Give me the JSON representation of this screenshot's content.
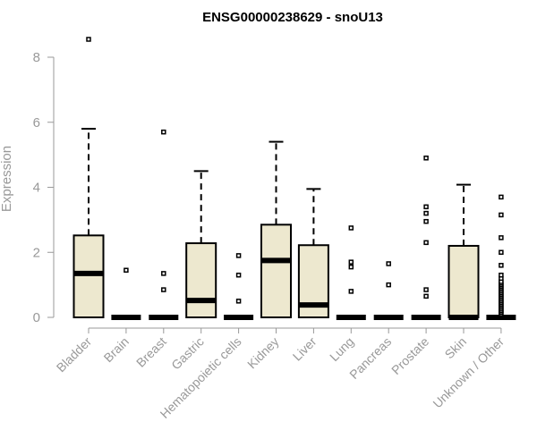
{
  "chart_data": {
    "type": "boxplot",
    "title": "ENSG00000238629 - snoU13",
    "xlabel": "",
    "ylabel": "Expression",
    "ylim": [
      0,
      8.8
    ],
    "yticks": [
      0,
      2,
      4,
      6,
      8
    ],
    "grid": false,
    "legend": "none",
    "box_color": "#EDE8CF",
    "categories": [
      "Bladder",
      "Brain",
      "Breast",
      "Gastric",
      "Hematopoietic cells",
      "Kidney",
      "Liver",
      "Lung",
      "Pancreas",
      "Prostate",
      "Skin",
      "Unknown / Other"
    ],
    "boxes": [
      {
        "category": "Bladder",
        "q1": 0.0,
        "median": 1.35,
        "q3": 2.52,
        "whisker_low": 0.0,
        "whisker_high": 5.8,
        "outliers": [
          8.55
        ]
      },
      {
        "category": "Brain",
        "q1": 0.0,
        "median": 0.0,
        "q3": 0.0,
        "whisker_low": 0.0,
        "whisker_high": 0.0,
        "outliers": [
          1.45
        ]
      },
      {
        "category": "Breast",
        "q1": 0.0,
        "median": 0.0,
        "q3": 0.0,
        "whisker_low": 0.0,
        "whisker_high": 0.0,
        "outliers": [
          0.85,
          1.35,
          5.7
        ]
      },
      {
        "category": "Gastric",
        "q1": 0.0,
        "median": 0.52,
        "q3": 2.28,
        "whisker_low": 0.0,
        "whisker_high": 4.5,
        "outliers": []
      },
      {
        "category": "Hematopoietic cells",
        "q1": 0.0,
        "median": 0.0,
        "q3": 0.0,
        "whisker_low": 0.0,
        "whisker_high": 0.0,
        "outliers": [
          0.5,
          1.3,
          1.9
        ]
      },
      {
        "category": "Kidney",
        "q1": 0.0,
        "median": 1.75,
        "q3": 2.85,
        "whisker_low": 0.0,
        "whisker_high": 5.4,
        "outliers": []
      },
      {
        "category": "Liver",
        "q1": 0.0,
        "median": 0.38,
        "q3": 2.22,
        "whisker_low": 0.0,
        "whisker_high": 3.95,
        "outliers": []
      },
      {
        "category": "Lung",
        "q1": 0.0,
        "median": 0.0,
        "q3": 0.0,
        "whisker_low": 0.0,
        "whisker_high": 0.0,
        "outliers": [
          0.8,
          1.55,
          1.7,
          2.75
        ]
      },
      {
        "category": "Pancreas",
        "q1": 0.0,
        "median": 0.0,
        "q3": 0.0,
        "whisker_low": 0.0,
        "whisker_high": 0.0,
        "outliers": [
          1.0,
          1.65
        ]
      },
      {
        "category": "Prostate",
        "q1": 0.0,
        "median": 0.0,
        "q3": 0.0,
        "whisker_low": 0.0,
        "whisker_high": 0.0,
        "outliers": [
          0.65,
          0.85,
          2.3,
          2.95,
          3.2,
          3.4,
          4.9
        ]
      },
      {
        "category": "Skin",
        "q1": 0.0,
        "median": 0.0,
        "q3": 2.2,
        "whisker_low": 0.0,
        "whisker_high": 4.08,
        "outliers": []
      },
      {
        "category": "Unknown / Other",
        "q1": 0.0,
        "median": 0.0,
        "q3": 0.0,
        "whisker_low": 0.0,
        "whisker_high": 0.0,
        "outliers": [
          0.1,
          0.15,
          0.2,
          0.25,
          0.3,
          0.35,
          0.4,
          0.45,
          0.5,
          0.55,
          0.6,
          0.65,
          0.7,
          0.75,
          0.8,
          0.85,
          0.9,
          0.95,
          1.0,
          1.05,
          1.1,
          1.2,
          1.3,
          1.6,
          2.0,
          2.45,
          3.15,
          3.7
        ]
      }
    ]
  }
}
